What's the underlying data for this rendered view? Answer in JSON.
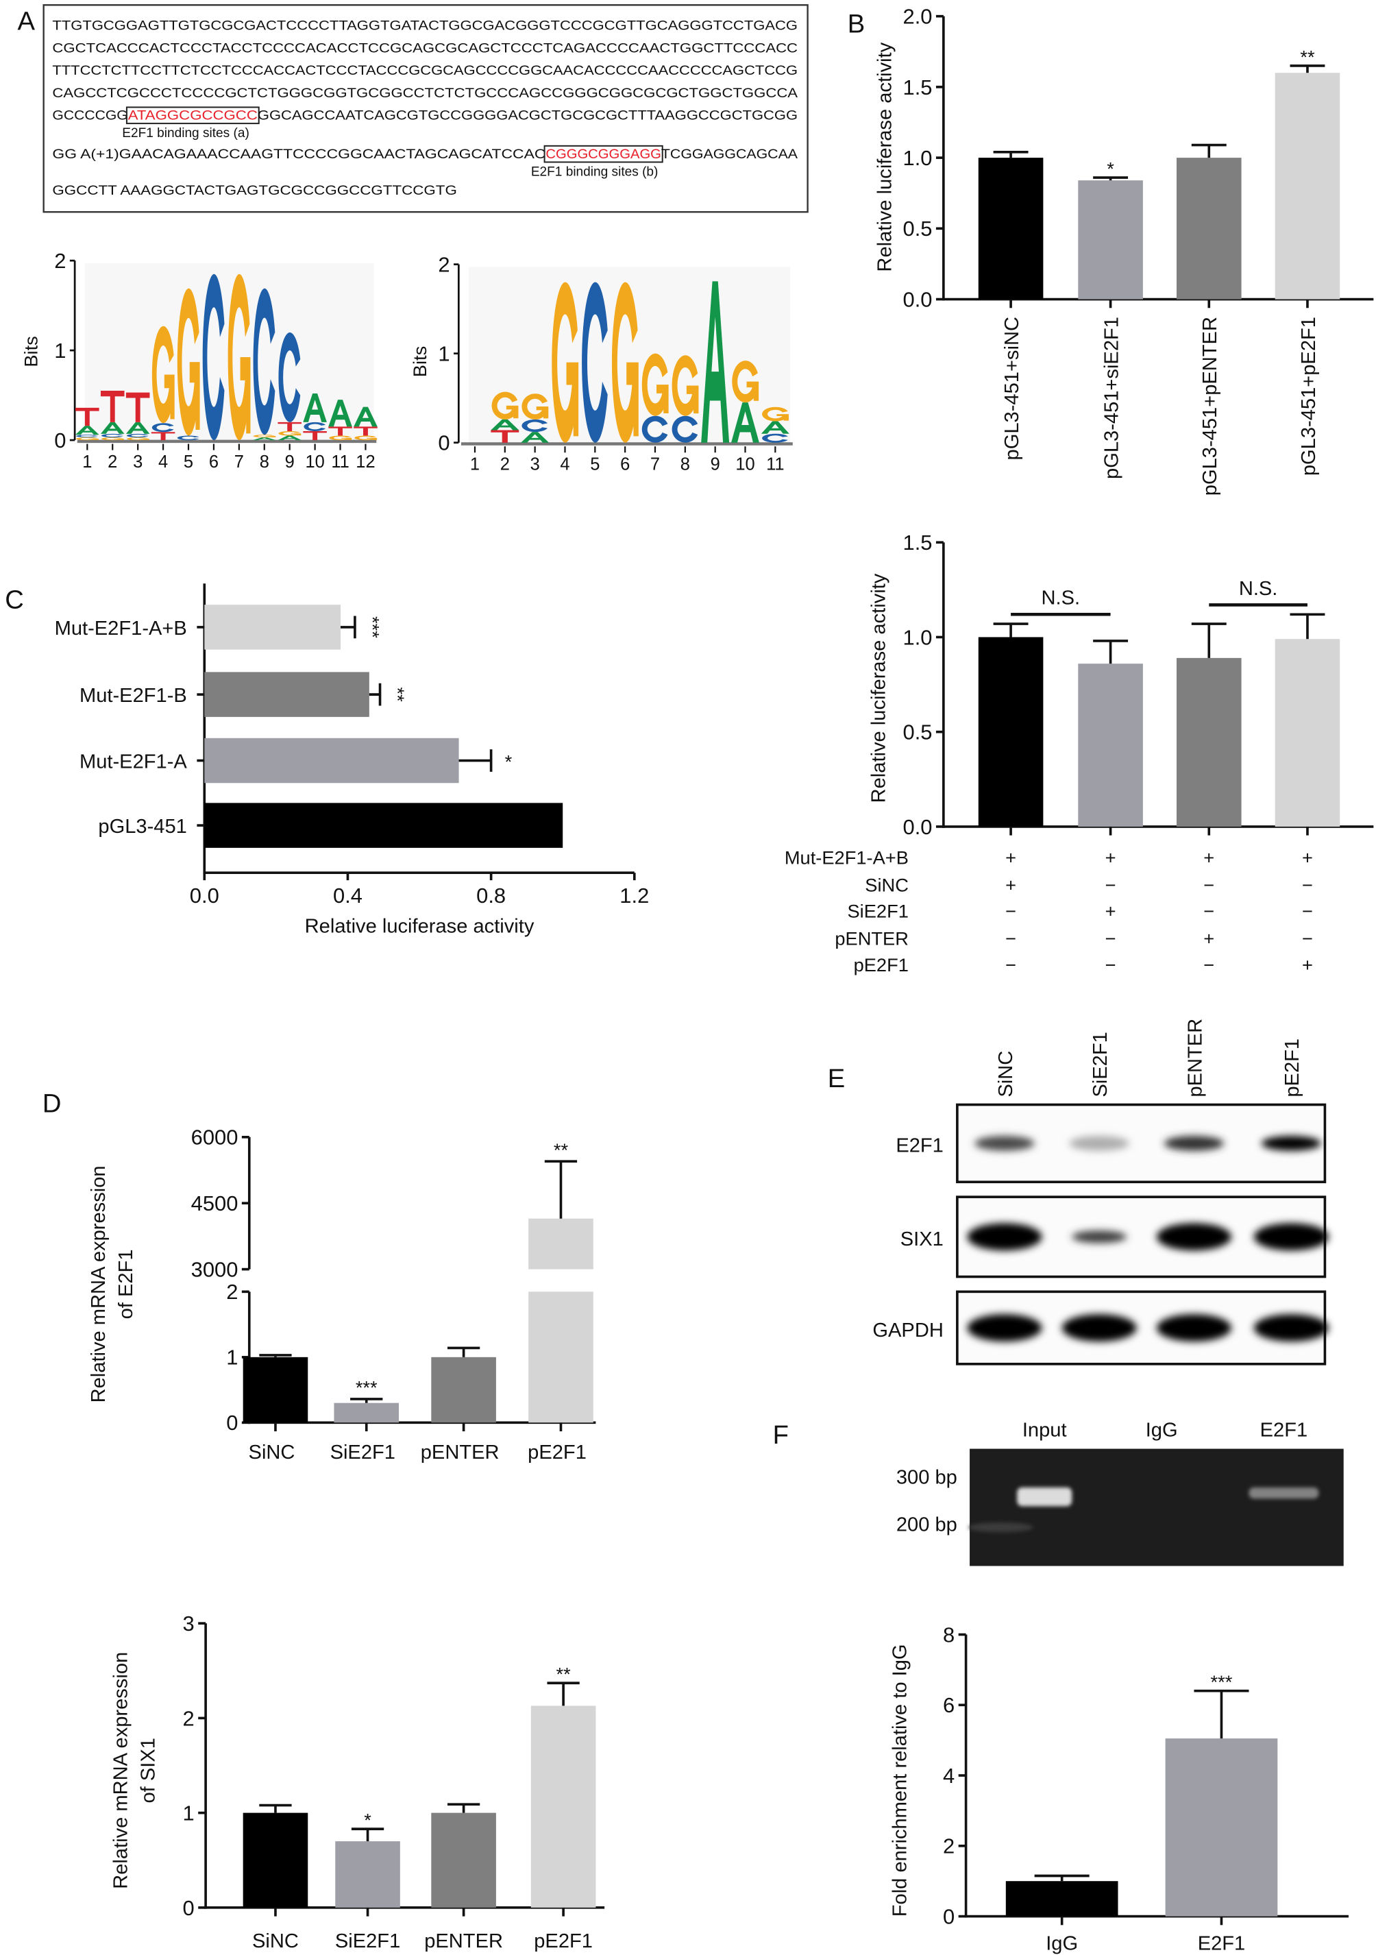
{
  "panel_labels": {
    "A": "A",
    "B": "B",
    "C": "C",
    "D": "D",
    "E": "E",
    "F": "F"
  },
  "panelA": {
    "sequence_lines": [
      [
        {
          "t": "TTGTGCGGAGTTGTGCGCGACTCCCCTTAGGTGATACTGGCGACGGGTCCCGCGTTGCAGGGTCCTGACG"
        }
      ],
      [
        {
          "t": "CGCTCACCCACTCCCTACCTCCCCACACCTCCGCAGCGCAGCTCCCTCAGACCCCAACTGGCTTCCCACC"
        }
      ],
      [
        {
          "t": "TTTCCTCTTCCTTCTCCTCCCACCACTCCCTACCCGCGCAGCCCCGGCAACACCCCCAACCCCCAGCTCCG"
        }
      ],
      [
        {
          "t": "CAGCCTCGCCCTCCCCGCTCTGGGCGGTGCGGCCTCTCTGCCCAGCCGGGCGGCGCGCTGGCTGGCCA"
        }
      ],
      [
        {
          "t": "GCCCCGG"
        },
        {
          "t": "ATAGGCGCCGCC",
          "site": true
        },
        {
          "t": "GGCAGCCAATCAGCGTGCCGGGGACGCTGCGCGCTTTAAGGCCGCTGCGG"
        }
      ],
      [
        {
          "t": "GG A(+1)GAACAGAAACCAAGTTCCCCGGCAACTAGCAGCATCCAC"
        },
        {
          "t": "CGGGCGGGAGG",
          "site": true
        },
        {
          "t": "TCGGAGGCAGCAA"
        }
      ],
      [
        {
          "t": "GGCCTT AAAGGCTACTGAGTGCGCCGGCCGTTCCGTG"
        }
      ]
    ],
    "site_a_label": "E2F1 binding sites (a)",
    "site_b_label": "E2F1 binding sites (b)",
    "site_color": "#e8202a",
    "logo_colors": {
      "A": "#14964a",
      "C": "#1f5ea8",
      "G": "#f2a81d",
      "T": "#d9262e"
    },
    "logos": [
      {
        "ylabel": "Bits",
        "ytick_labels": [
          "0",
          "1",
          "2"
        ],
        "positions": [
          "1",
          "2",
          "3",
          "4",
          "5",
          "6",
          "7",
          "8",
          "9",
          "10",
          "11",
          "12"
        ],
        "stacks": [
          [
            [
              "G",
              0.03
            ],
            [
              "C",
              0.03
            ],
            [
              "A",
              0.1
            ],
            [
              "T",
              0.2
            ]
          ],
          [
            [
              "G",
              0.03
            ],
            [
              "C",
              0.04
            ],
            [
              "A",
              0.13
            ],
            [
              "T",
              0.35
            ]
          ],
          [
            [
              "G",
              0.03
            ],
            [
              "C",
              0.04
            ],
            [
              "A",
              0.13
            ],
            [
              "T",
              0.33
            ]
          ],
          [
            [
              "T",
              0.09
            ],
            [
              "C",
              0.1
            ],
            [
              "G",
              1.08
            ]
          ],
          [
            [
              "C",
              0.05
            ],
            [
              "G",
              1.64
            ]
          ],
          [
            [
              "C",
              1.85
            ]
          ],
          [
            [
              "G",
              1.85
            ]
          ],
          [
            [
              "A",
              0.03
            ],
            [
              "G",
              0.03
            ],
            [
              "C",
              1.63
            ]
          ],
          [
            [
              "A",
              0.05
            ],
            [
              "G",
              0.05
            ],
            [
              "T",
              0.1
            ],
            [
              "C",
              1.0
            ]
          ],
          [
            [
              "T",
              0.1
            ],
            [
              "C",
              0.1
            ],
            [
              "A",
              0.32
            ]
          ],
          [
            [
              "G",
              0.05
            ],
            [
              "T",
              0.1
            ],
            [
              "A",
              0.3
            ]
          ],
          [
            [
              "G",
              0.05
            ],
            [
              "T",
              0.1
            ],
            [
              "A",
              0.22
            ]
          ]
        ]
      },
      {
        "ylabel": "Bits",
        "ytick_labels": [
          "0",
          "1",
          "2"
        ],
        "positions": [
          "1",
          "2",
          "3",
          "4",
          "5",
          "6",
          "7",
          "8",
          "9",
          "10",
          "11"
        ],
        "stacks": [
          [],
          [
            [
              "T",
              0.14
            ],
            [
              "A",
              0.12
            ],
            [
              "G",
              0.31
            ]
          ],
          [
            [
              "A",
              0.12
            ],
            [
              "C",
              0.14
            ],
            [
              "G",
              0.29
            ]
          ],
          [
            [
              "G",
              1.8
            ]
          ],
          [
            [
              "C",
              1.8
            ]
          ],
          [
            [
              "G",
              1.8
            ]
          ],
          [
            [
              "C",
              0.3
            ],
            [
              "G",
              0.7
            ]
          ],
          [
            [
              "C",
              0.3
            ],
            [
              "G",
              0.68
            ]
          ],
          [
            [
              "A",
              1.81
            ]
          ],
          [
            [
              "A",
              0.45
            ],
            [
              "G",
              0.47
            ]
          ],
          [
            [
              "C",
              0.1
            ],
            [
              "A",
              0.14
            ],
            [
              "G",
              0.16
            ]
          ]
        ]
      }
    ]
  },
  "chart_data": [
    {
      "id": "B",
      "type": "bar",
      "categories": [
        "pGL3-451+siNC",
        "pGL3-451+siE2F1",
        "pGL3-451+pENTER",
        "pGL3-451+pE2F1"
      ],
      "values": [
        1.0,
        0.84,
        1.0,
        1.6
      ],
      "errors": [
        0.04,
        0.02,
        0.09,
        0.05
      ],
      "significance": [
        "",
        "*",
        "",
        "**"
      ],
      "ylabel": "Relative luciferase activity",
      "ylim": [
        0,
        2.0
      ],
      "yticks": [
        0,
        0.5,
        1.0,
        1.5,
        2.0
      ],
      "ytick_labels": [
        "0.0",
        "0.5",
        "1.0",
        "1.5",
        "2.0"
      ],
      "colors": [
        "#000000",
        "#9d9ea6",
        "#7f7f7f",
        "#d5d5d5"
      ]
    },
    {
      "id": "C",
      "type": "bar",
      "orientation": "horizontal",
      "categories": [
        "Mut-E2F1-A+B",
        "Mut-E2F1-B",
        "Mut-E2F1-A",
        "pGL3-451"
      ],
      "values": [
        0.38,
        0.46,
        0.71,
        1.0
      ],
      "errors": [
        0.04,
        0.03,
        0.09,
        0
      ],
      "significance": [
        "***",
        "**",
        "*",
        ""
      ],
      "xlabel": "Relative luciferase activity",
      "xlim": [
        0,
        1.2
      ],
      "xticks": [
        0,
        0.4,
        0.8,
        1.2
      ],
      "xtick_labels": [
        "0.0",
        "0.4",
        "0.8",
        "1.2"
      ],
      "colors": [
        "#d5d5d5",
        "#7f7f7f",
        "#9d9ea6",
        "#000000"
      ]
    },
    {
      "id": "B_mut",
      "type": "bar",
      "values": [
        1.0,
        0.86,
        0.89,
        0.99
      ],
      "errors": [
        0.07,
        0.12,
        0.18,
        0.13
      ],
      "ylabel": "Relative luciferase activity",
      "ylim": [
        0,
        1.5
      ],
      "yticks": [
        0,
        0.5,
        1.0,
        1.5
      ],
      "ytick_labels": [
        "0.0",
        "0.5",
        "1.0",
        "1.5"
      ],
      "comparisons": [
        {
          "groups": [
            0,
            1
          ],
          "label": "N.S."
        },
        {
          "groups": [
            2,
            3
          ],
          "label": "N.S."
        }
      ],
      "table": [
        {
          "label": "Mut-E2F1-A+B",
          "values": [
            "+",
            "+",
            "+",
            "+"
          ]
        },
        {
          "label": "SiNC",
          "values": [
            "+",
            "−",
            "−",
            "−"
          ]
        },
        {
          "label": "SiE2F1",
          "values": [
            "−",
            "+",
            "−",
            "−"
          ]
        },
        {
          "label": "pENTER",
          "values": [
            "−",
            "−",
            "+",
            "−"
          ]
        },
        {
          "label": "pE2F1",
          "values": [
            "−",
            "−",
            "−",
            "+"
          ]
        }
      ],
      "colors": [
        "#000000",
        "#9d9ea6",
        "#7f7f7f",
        "#d5d5d5"
      ]
    },
    {
      "id": "D_E2F1",
      "type": "bar",
      "axis_break": true,
      "categories": [
        "SiNC",
        "SiE2F1",
        "pENTER",
        "pE2F1"
      ],
      "values": [
        1.0,
        0.3,
        1.0,
        4150
      ],
      "errors": [
        0.03,
        0.06,
        0.14,
        1300
      ],
      "significance": [
        "",
        "***",
        "",
        "**"
      ],
      "ylabel": [
        "Relative mRNA expression",
        "of E2F1"
      ],
      "ylim_lower": [
        0,
        2
      ],
      "yticks_lower": [
        0,
        1,
        2
      ],
      "ytick_labels_lower": [
        "0",
        "1",
        "2"
      ],
      "ylim_upper": [
        3000,
        6000
      ],
      "yticks_upper": [
        3000,
        4500,
        6000
      ],
      "ytick_labels_upper": [
        "3000",
        "4500",
        "6000"
      ],
      "colors": [
        "#000000",
        "#9d9ea6",
        "#7f7f7f",
        "#d5d5d5"
      ]
    },
    {
      "id": "D_SIX1",
      "type": "bar",
      "categories": [
        "SiNC",
        "SiE2F1",
        "pENTER",
        "pE2F1"
      ],
      "values": [
        1.0,
        0.7,
        1.0,
        2.13
      ],
      "errors": [
        0.08,
        0.13,
        0.09,
        0.24
      ],
      "significance": [
        "",
        "*",
        "",
        "**"
      ],
      "ylabel": [
        "Relative mRNA expression",
        "of SIX1"
      ],
      "ylim": [
        0,
        3
      ],
      "yticks": [
        0,
        1,
        2,
        3
      ],
      "ytick_labels": [
        "0",
        "1",
        "2",
        "3"
      ],
      "colors": [
        "#000000",
        "#9d9ea6",
        "#7f7f7f",
        "#d5d5d5"
      ]
    },
    {
      "id": "F",
      "type": "bar",
      "categories": [
        "IgG",
        "E2F1"
      ],
      "values": [
        1.0,
        5.05
      ],
      "errors": [
        0.15,
        1.35
      ],
      "significance": [
        "",
        "***"
      ],
      "ylabel": "Fold enrichment relative to IgG",
      "ylim": [
        0,
        8
      ],
      "yticks": [
        0,
        2,
        4,
        6,
        8
      ],
      "ytick_labels": [
        "0",
        "2",
        "4",
        "6",
        "8"
      ],
      "colors": [
        "#000000",
        "#9d9ea6"
      ]
    }
  ],
  "panelE": {
    "lanes": [
      "SiNC",
      "SiE2F1",
      "pENTER",
      "pE2F1"
    ],
    "rows": [
      {
        "label": "E2F1",
        "intensity": [
          0.7,
          0.25,
          0.8,
          1.0
        ]
      },
      {
        "label": "SIX1",
        "intensity": [
          1.0,
          0.75,
          1.0,
          1.0
        ]
      },
      {
        "label": "GAPDH",
        "intensity": [
          1.0,
          1.0,
          1.0,
          1.0
        ]
      }
    ]
  },
  "panelF_gel": {
    "lanes": [
      "Input",
      "IgG",
      "E2F1"
    ],
    "markers": [
      "300 bp",
      "200 bp"
    ],
    "band_intensity": [
      0.9,
      0.0,
      0.45
    ]
  }
}
